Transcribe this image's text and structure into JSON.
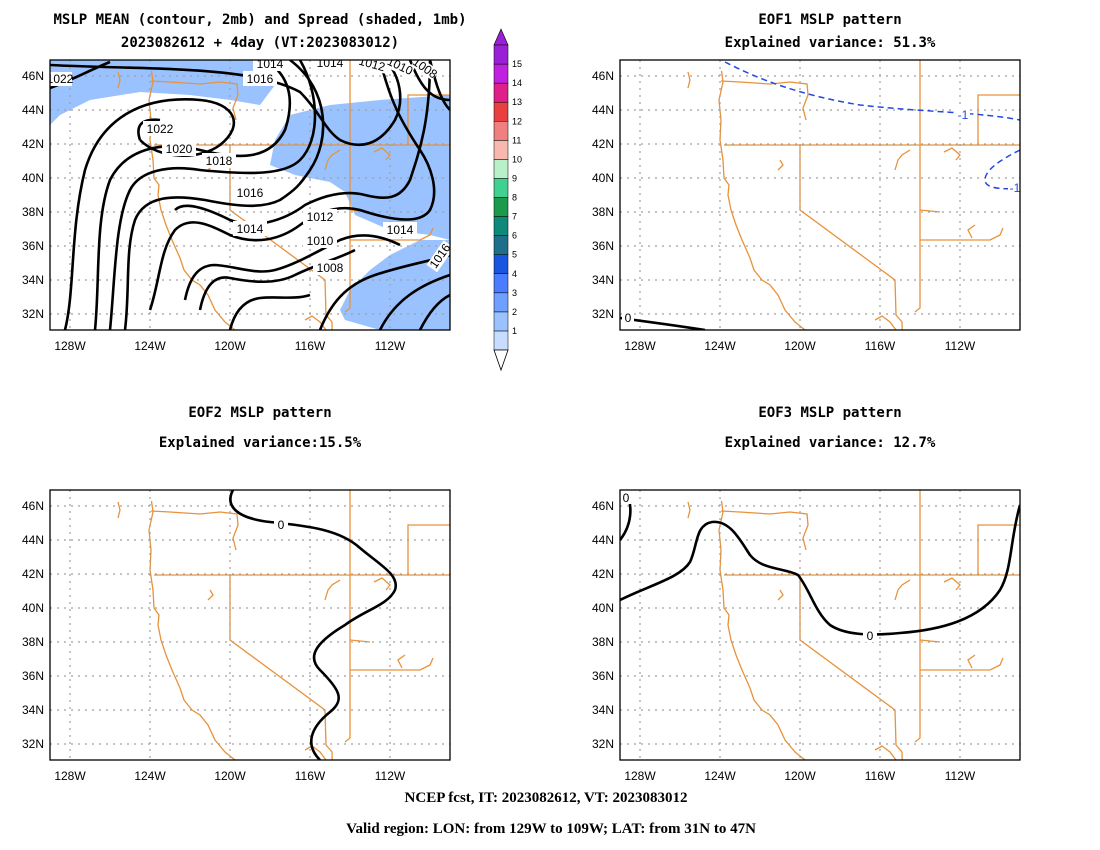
{
  "panels": {
    "mean": {
      "title_line1": "MSLP MEAN (contour, 2mb) and Spread (shaded, 1mb)",
      "title_line2": "2023082612 + 4day (VT:2023083012)",
      "contour_labels": [
        "1022",
        "1022",
        "1020",
        "1018",
        "1016",
        "1016",
        "1014",
        "1014",
        "1014",
        "1012",
        "1010",
        "1008",
        "1012",
        "1014",
        "1016",
        "1010",
        "1008"
      ],
      "spread_color": "#99c2ff"
    },
    "eof1": {
      "title_line1": "EOF1 MSLP pattern",
      "title_line2": "Explained variance: 51.3%",
      "zero_label": "0",
      "neg_labels": [
        "-1",
        "-1"
      ],
      "neg_color": "#2448e0"
    },
    "eof2": {
      "title_line1": "EOF2 MSLP pattern",
      "title_line2": "Explained variance:15.5%",
      "zero_label": "0"
    },
    "eof3": {
      "title_line1": "EOF3 MSLP pattern",
      "title_line2": "Explained variance: 12.7%",
      "zero_labels": [
        "0",
        "0"
      ]
    }
  },
  "axes": {
    "lat_ticks": [
      "46N",
      "44N",
      "42N",
      "40N",
      "38N",
      "36N",
      "34N",
      "32N"
    ],
    "lon_ticks": [
      "128W",
      "124W",
      "120W",
      "116W",
      "112W"
    ],
    "lon_range": [
      -129,
      -109
    ],
    "lat_range": [
      31,
      47
    ]
  },
  "colorbar": {
    "levels": [
      "1",
      "2",
      "3",
      "4",
      "5",
      "6",
      "7",
      "8",
      "9",
      "10",
      "11",
      "12",
      "13",
      "14",
      "15"
    ],
    "colors": [
      "#c8dcff",
      "#99c2ff",
      "#6fa0ff",
      "#4a7cff",
      "#1a55e0",
      "#1d6f8a",
      "#0e8a7a",
      "#1a9a4a",
      "#40d090",
      "#b8f0c8",
      "#f8b8b0",
      "#f08080",
      "#e84040",
      "#e0208a",
      "#c020e0",
      "#9a20d8"
    ]
  },
  "borders": {
    "color": "#e8923a"
  },
  "footer": {
    "line1": "NCEP fcst, IT: 2023082612, VT: 2023083012",
    "line2": "Valid region: LON: from 129W to 109W; LAT: from 31N to 47N"
  }
}
